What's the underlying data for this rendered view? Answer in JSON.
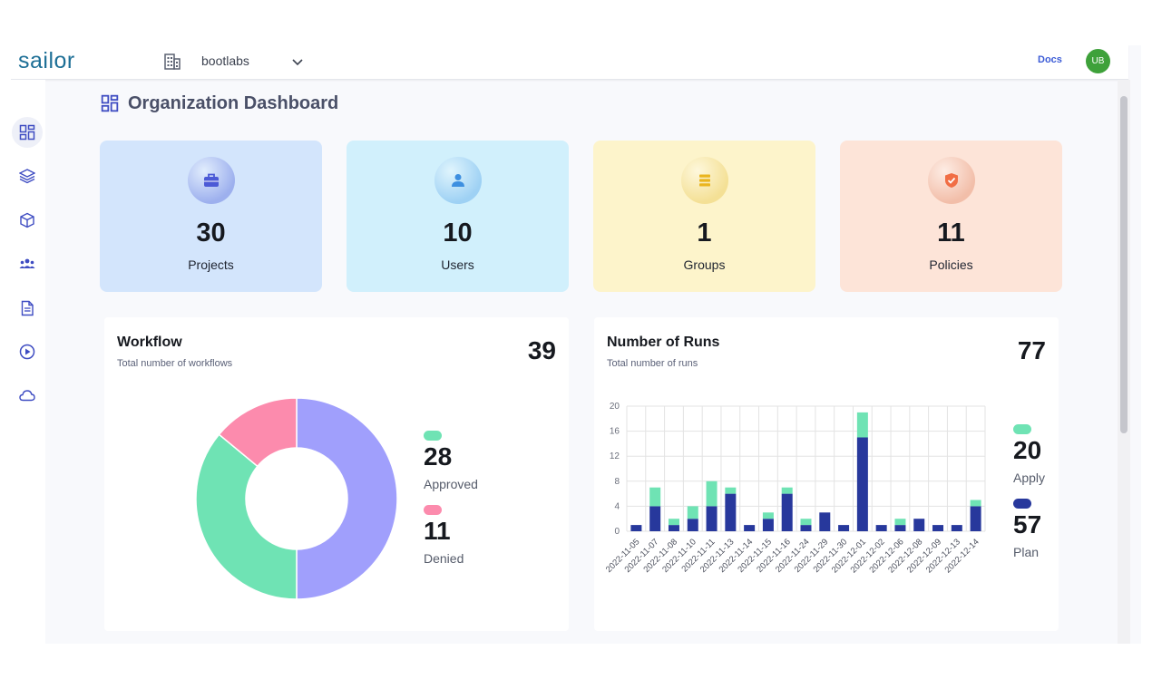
{
  "header": {
    "brand": "sailor",
    "org_name": "bootlabs",
    "docs_label": "Docs",
    "avatar_initials": "UB",
    "avatar_color": "#3ea13a"
  },
  "sidebar": {
    "items": [
      {
        "icon": "dashboard-icon",
        "active": true
      },
      {
        "icon": "layers-icon",
        "active": false
      },
      {
        "icon": "cube-icon",
        "active": false
      },
      {
        "icon": "users-group-icon",
        "active": false
      },
      {
        "icon": "document-icon",
        "active": false
      },
      {
        "icon": "play-circle-icon",
        "active": false
      },
      {
        "icon": "cloud-icon",
        "active": false
      }
    ]
  },
  "page": {
    "title": "Organization Dashboard"
  },
  "stats": [
    {
      "value": "30",
      "label": "Projects",
      "icon": "briefcase-icon",
      "bg": "#d3e5fc",
      "icon_bg": "#9db0ee",
      "icon_color": "#4c5ad6"
    },
    {
      "value": "10",
      "label": "Users",
      "icon": "user-icon",
      "bg": "#d1f0fc",
      "icon_bg": "#9ed1f4",
      "icon_color": "#3d8fe0"
    },
    {
      "value": "1",
      "label": "Groups",
      "icon": "layers-stack-icon",
      "bg": "#fdf4cb",
      "icon_bg": "#f4e095",
      "icon_color": "#eab51f"
    },
    {
      "value": "11",
      "label": "Policies",
      "icon": "shield-check-icon",
      "bg": "#fde4d8",
      "icon_bg": "#f2bea9",
      "icon_color": "#f16e45"
    }
  ],
  "workflow": {
    "title": "Workflow",
    "subtitle": "Total number of workflows",
    "total": "39",
    "approved": {
      "value": "28",
      "label": "Approved",
      "color": "#6fe3b4"
    },
    "denied": {
      "value": "11",
      "label": "Denied",
      "color": "#fc8bad"
    }
  },
  "runs": {
    "title": "Number of Runs",
    "subtitle": "Total number of runs",
    "total": "77",
    "apply": {
      "value": "20",
      "label": "Apply",
      "color": "#6fe3b4"
    },
    "plan": {
      "value": "57",
      "label": "Plan",
      "color": "#27389c"
    }
  },
  "chart_data": [
    {
      "type": "pie",
      "labels": [
        "",
        "",
        ""
      ],
      "values": [
        50,
        36,
        14
      ],
      "colors": [
        "#a09ffc",
        "#6fe3b4",
        "#fc8bad"
      ],
      "donut": true
    },
    {
      "type": "bar",
      "stacked": true,
      "categories": [
        "2022-11-05",
        "2022-11-07",
        "2022-11-08",
        "2022-11-10",
        "2022-11-11",
        "2022-11-13",
        "2022-11-14",
        "2022-11-15",
        "2022-11-16",
        "2022-11-24",
        "2022-11-29",
        "2022-11-30",
        "2022-12-01",
        "2022-12-02",
        "2022-12-06",
        "2022-12-08",
        "2022-12-09",
        "2022-12-13",
        "2022-12-14"
      ],
      "series": [
        {
          "name": "Plan",
          "values": [
            1,
            4,
            1,
            2,
            4,
            6,
            1,
            2,
            6,
            1,
            3,
            1,
            15,
            1,
            1,
            2,
            1,
            1,
            4
          ],
          "color": "#27389c"
        },
        {
          "name": "Apply",
          "values": [
            0,
            3,
            1,
            2,
            4,
            1,
            0,
            1,
            1,
            1,
            0,
            0,
            4,
            0,
            1,
            0,
            0,
            0,
            1
          ],
          "color": "#6fe3b4"
        }
      ],
      "ylim": [
        0,
        20
      ],
      "yticks": [
        0,
        4,
        8,
        12,
        16,
        20
      ],
      "grid": true,
      "xlabel": "",
      "ylabel": ""
    }
  ]
}
